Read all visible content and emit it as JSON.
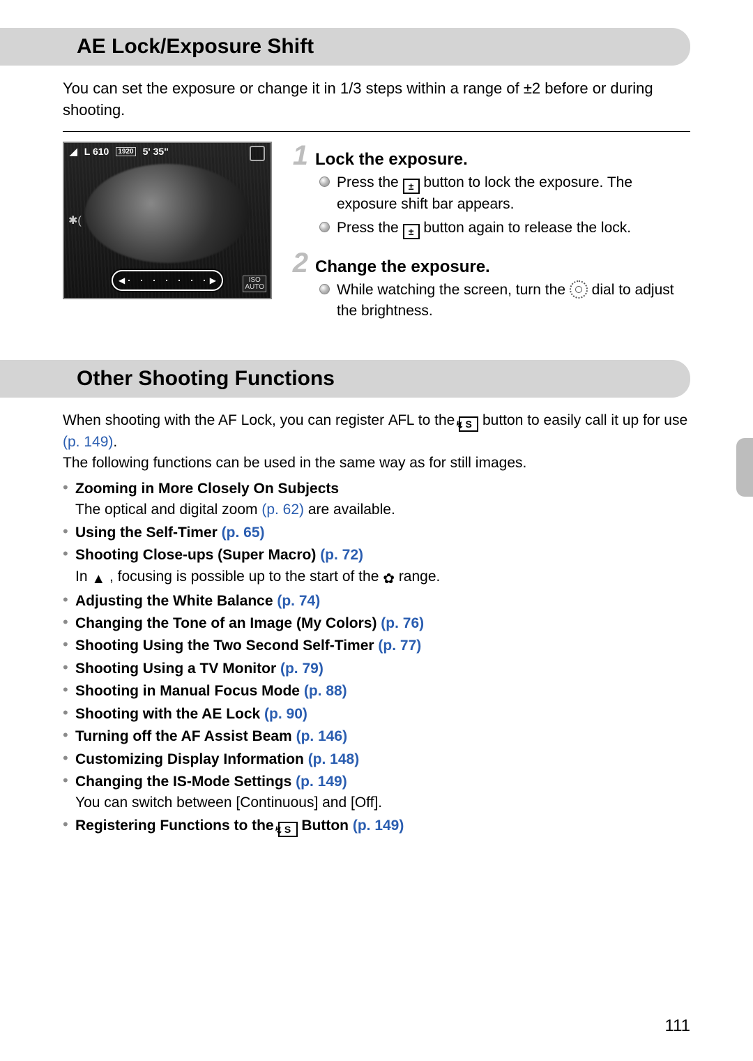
{
  "page_number": "111",
  "colors": {
    "header_bg": "#d4d4d4",
    "step_num": "#bdbdbd",
    "link": "#2a5db0",
    "bullet": "#8a8a8a"
  },
  "section1": {
    "title": "AE Lock/Exposure Shift",
    "intro": "You can set the exposure or change it in 1/3 steps within a range of ±2 before or during shooting.",
    "lcd": {
      "shots": "L 610",
      "rec_time": "5' 35\"",
      "iso": "ISO\nAUTO"
    },
    "steps": [
      {
        "num": "1",
        "title": "Lock the exposure.",
        "items": [
          {
            "pre": "Press the ",
            "icon": "exp-comp-icon",
            "icon_text": "±",
            "post": " button to lock the exposure. The exposure shift bar appears."
          },
          {
            "pre": "Press the ",
            "icon": "exp-comp-icon",
            "icon_text": "±",
            "post": " button again to release the lock."
          }
        ]
      },
      {
        "num": "2",
        "title": "Change the exposure.",
        "items": [
          {
            "pre": "While watching the screen, turn the ",
            "icon": "dial-icon",
            "post": " dial to adjust the brightness."
          }
        ]
      }
    ]
  },
  "section2": {
    "title": "Other Shooting Functions",
    "intro_parts": {
      "p1a": "When shooting with the AF Lock, you can register ",
      "afl": "AFL",
      "p1b": " to the ",
      "p1c": " button to easily call it up for use ",
      "p149_1": "(p. 149)",
      "p2": "The following functions can be used in the same way as for still images."
    },
    "functions": [
      {
        "title": "Zooming in More Closely On Subjects",
        "ref": "",
        "sub_pre": "The optical and digital zoom ",
        "sub_ref": "(p. 62)",
        "sub_post": " are available."
      },
      {
        "title": "Using the Self-Timer ",
        "ref": "(p. 65)"
      },
      {
        "title": "Shooting Close-ups (Super Macro) ",
        "ref": "(p. 72)",
        "sub_pre": "In ",
        "sub_icon1": "▲",
        "sub_mid": " , focusing is possible up to the start of the ",
        "sub_icon2": "✿",
        "sub_post": " range."
      },
      {
        "title": "Adjusting the White Balance ",
        "ref": "(p. 74)"
      },
      {
        "title": "Changing the Tone of an Image (My Colors) ",
        "ref": "(p. 76)"
      },
      {
        "title": "Shooting Using the Two Second Self-Timer ",
        "ref": "(p. 77)"
      },
      {
        "title": "Shooting Using a TV Monitor ",
        "ref": "(p. 79)"
      },
      {
        "title": "Shooting in Manual Focus Mode ",
        "ref": "(p. 88)"
      },
      {
        "title": "Shooting with the AE Lock ",
        "ref": "(p. 90)"
      },
      {
        "title": "Turning off the AF Assist Beam ",
        "ref": "(p. 146)"
      },
      {
        "title": "Customizing Display Information ",
        "ref": "(p. 148)"
      },
      {
        "title": "Changing the IS-Mode Settings ",
        "ref": "(p. 149)",
        "sub_plain": "You can switch between [Continuous] and [Off]."
      },
      {
        "title_pre": "Registering Functions to the ",
        "title_icon": "S",
        "title_post": " Button ",
        "ref": "(p. 149)"
      }
    ]
  }
}
